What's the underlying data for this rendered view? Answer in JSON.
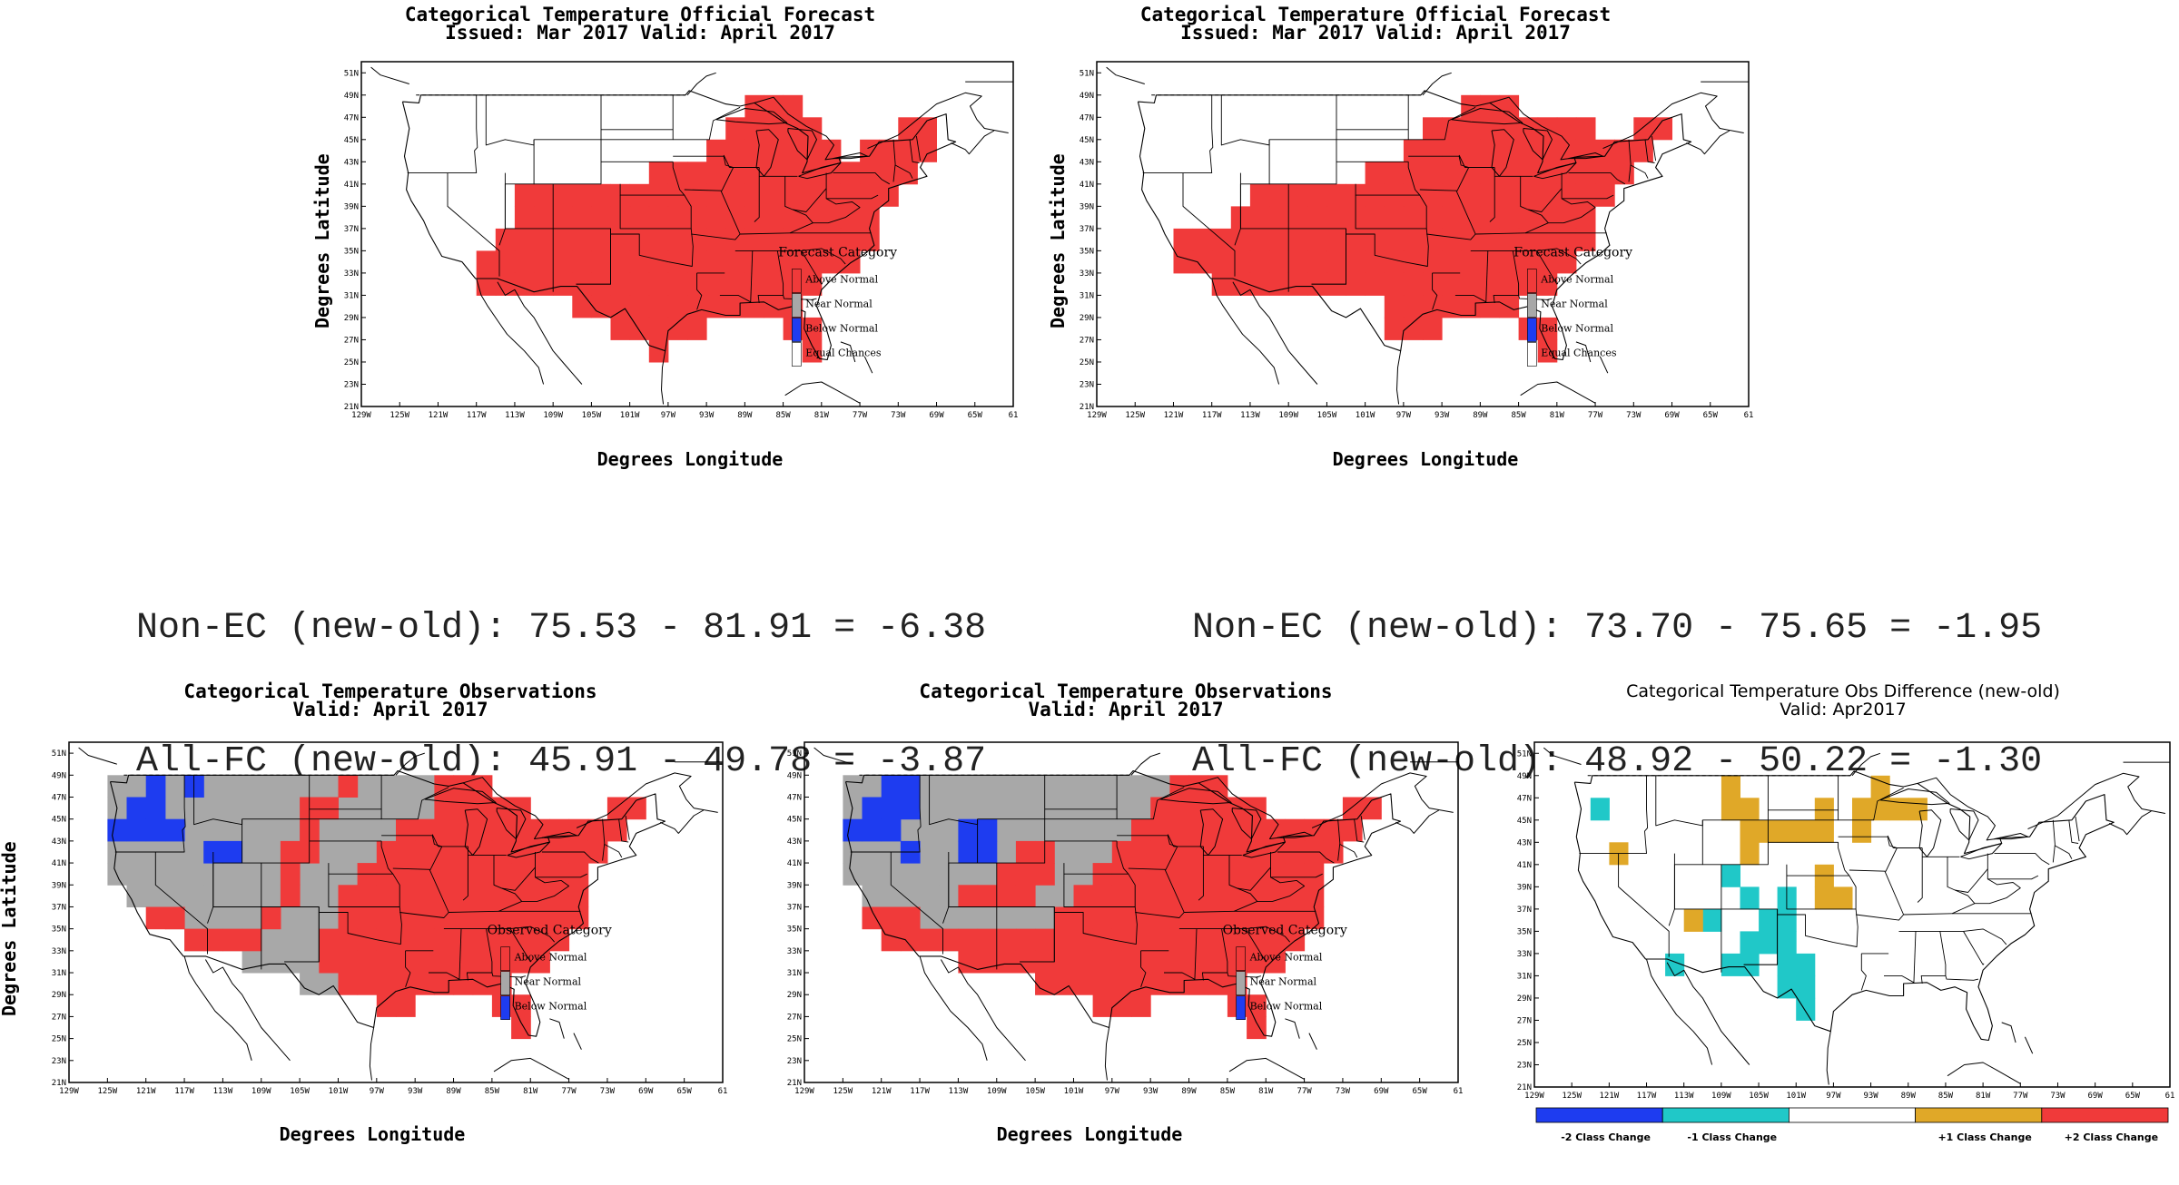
{
  "colors": {
    "above": "#f03a3a",
    "near": "#a8a8a8",
    "below": "#1e3cf0",
    "equal": "#ffffff",
    "minus2": "#1e3cf0",
    "minus1": "#20c8c8",
    "plus1": "#e0a828",
    "plus2": "#f03a3a"
  },
  "axes": {
    "x_ticks": [
      "129W",
      "125W",
      "121W",
      "117W",
      "113W",
      "109W",
      "105W",
      "101W",
      "97W",
      "93W",
      "89W",
      "85W",
      "81W",
      "77W",
      "73W",
      "69W",
      "65W",
      "61"
    ],
    "y_ticks": [
      "51N",
      "49N",
      "47N",
      "45N",
      "43N",
      "41N",
      "39N",
      "37N",
      "35N",
      "33N",
      "31N",
      "29N",
      "27N",
      "25N",
      "23N",
      "21N"
    ],
    "xlabel": "Degrees Longitude",
    "ylabel": "Degrees Latitude"
  },
  "forecast_panels": [
    {
      "title": "Categorical Temperature Official Forecast",
      "subtitle": "Issued: Mar 2017 Valid: April 2017",
      "legend_title": "Forecast Category",
      "legend": [
        "Above Normal",
        "Near Normal",
        "Below Normal",
        "Equal Chances"
      ]
    },
    {
      "title": "Categorical Temperature Official Forecast",
      "subtitle": "Issued: Mar 2017 Valid: April 2017",
      "legend_title": "Forecast Category",
      "legend": [
        "Above Normal",
        "Near Normal",
        "Below Normal",
        "Equal Chances"
      ]
    }
  ],
  "stats": [
    {
      "line1": "Non-EC (new-old): 75.53 - 81.91 = -6.38",
      "line2": "All-FC (new-old): 45.91 - 49.78 = -3.87"
    },
    {
      "line1": "Non-EC (new-old): 73.70 - 75.65 = -1.95",
      "line2": "All-FC (new-old): 48.92 - 50.22 = -1.30"
    }
  ],
  "observation_panels": [
    {
      "title": "Categorical Temperature Observations",
      "subtitle": "Valid: April 2017",
      "legend_title": "Observed Category",
      "legend": [
        "Above Normal",
        "Near Normal",
        "Below Normal"
      ]
    },
    {
      "title": "Categorical Temperature Observations",
      "subtitle": "Valid: April 2017",
      "legend_title": "Observed Category",
      "legend": [
        "Above Normal",
        "Near Normal",
        "Below Normal"
      ]
    }
  ],
  "difference_panel": {
    "title": "Categorical Temperature Obs Difference (new-old)",
    "subtitle": "Valid: Apr2017",
    "legend": [
      "-2 Class Change",
      "-1 Class Change",
      "+1 Class Change",
      "+2 Class Change"
    ]
  }
}
